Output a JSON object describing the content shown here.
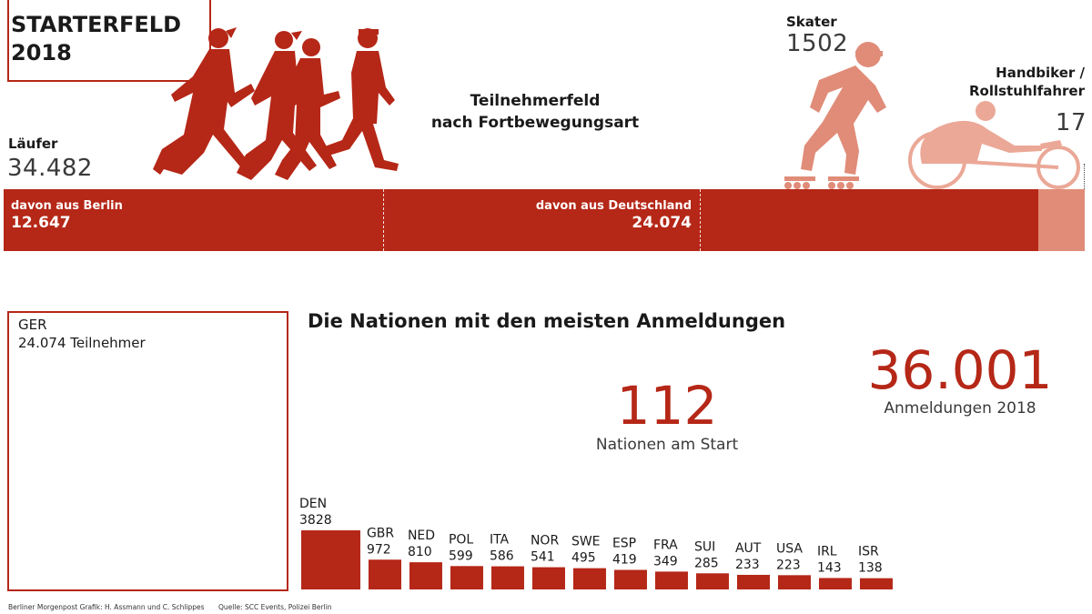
{
  "header": {
    "title": "STARTERFELD 2018"
  },
  "runners": {
    "label": "Läufer",
    "value": "34.482"
  },
  "center_title": {
    "line1": "Teilnehmerfeld",
    "line2": "nach Fortbewegungsart"
  },
  "skaters": {
    "label": "Skater",
    "value": "1502"
  },
  "handbikers": {
    "label_line1": "Handbiker /",
    "label_line2": "Rollstuhlfahrer",
    "value": "17"
  },
  "strip": {
    "berlin_label": "davon aus Berlin",
    "berlin_value": "12.647",
    "germany_label": "davon aus Deutschland",
    "germany_value": "24.074"
  },
  "ger": {
    "code": "GER",
    "count": "24.074 Teilnehmer"
  },
  "nations_title": "Die Nationen mit den meisten Anmeldungen",
  "nations_count": {
    "value": "112",
    "label": "Nationen am Start"
  },
  "registrations": {
    "value": "36.001",
    "label": "Anmeldungen 2018"
  },
  "footer": {
    "credit": "Berliner Morgenpost Grafik: H. Assmann und C. Schlippes",
    "source": "Quelle: SCC Events, Polizei Berlin"
  },
  "colors": {
    "primary": "#b52717",
    "light": "#e08c78",
    "lighter": "#eba897"
  },
  "chart_data": [
    {
      "type": "bar",
      "title": "Teilnehmerfeld nach Fortbewegungsart",
      "categories": [
        "Läufer",
        "Skater",
        "Handbiker / Rollstuhlfahrer"
      ],
      "values": [
        34482,
        1502,
        17
      ],
      "sub_values": {
        "davon aus Berlin": 12647,
        "davon aus Deutschland": 24074
      }
    },
    {
      "type": "bar",
      "title": "Die Nationen mit den meisten Anmeldungen",
      "categories": [
        "GER",
        "DEN",
        "GBR",
        "NED",
        "POL",
        "ITA",
        "NOR",
        "SWE",
        "ESP",
        "FRA",
        "SUI",
        "AUT",
        "USA",
        "IRL",
        "ISR"
      ],
      "values": [
        24074,
        3828,
        972,
        810,
        599,
        586,
        541,
        495,
        419,
        349,
        285,
        233,
        223,
        143,
        138
      ]
    }
  ]
}
